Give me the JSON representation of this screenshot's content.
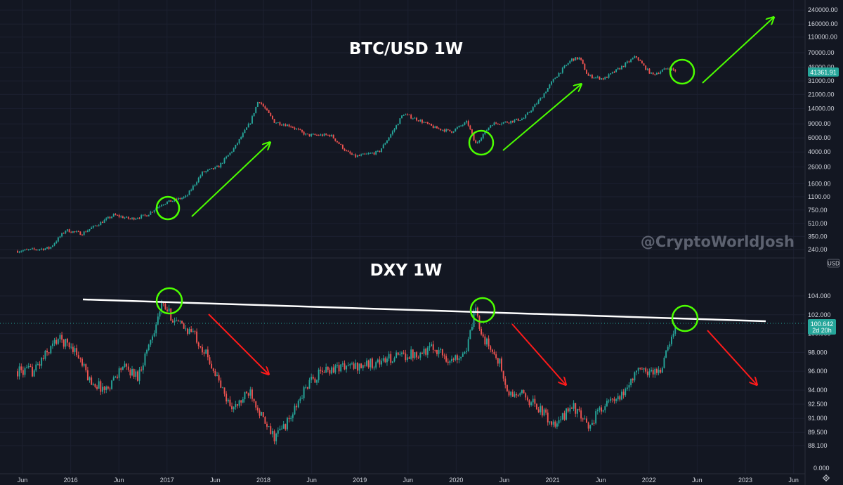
{
  "chart_data": [
    {
      "type": "candlestick",
      "title": "BTC/USD 1W",
      "currency": "USD",
      "scale": "log",
      "ylim": [
        220,
        240000
      ],
      "y_ticks": [
        "240000.00",
        "160000.00",
        "110000.00",
        "70000.00",
        "46000.00",
        "31000.00",
        "21000.00",
        "14000.00",
        "9000.00",
        "6000.00",
        "4000.00",
        "2600.00",
        "1600.00",
        "1100.00",
        "750.00",
        "510.00",
        "350.00",
        "240.00"
      ],
      "last_price": "41361.91",
      "series": [
        {
          "date": "2015-06",
          "close": 230
        },
        {
          "date": "2015-10",
          "close": 250
        },
        {
          "date": "2015-12",
          "close": 420
        },
        {
          "date": "2016-02",
          "close": 380
        },
        {
          "date": "2016-06",
          "close": 650
        },
        {
          "date": "2016-08",
          "close": 580
        },
        {
          "date": "2016-10",
          "close": 640
        },
        {
          "date": "2016-12",
          "close": 900
        },
        {
          "date": "2017-03",
          "close": 1100
        },
        {
          "date": "2017-05",
          "close": 2200
        },
        {
          "date": "2017-07",
          "close": 2600
        },
        {
          "date": "2017-09",
          "close": 4500
        },
        {
          "date": "2017-11",
          "close": 9500
        },
        {
          "date": "2017-12",
          "close": 18000
        },
        {
          "date": "2018-02",
          "close": 9500
        },
        {
          "date": "2018-04",
          "close": 8500
        },
        {
          "date": "2018-06",
          "close": 6500
        },
        {
          "date": "2018-09",
          "close": 6500
        },
        {
          "date": "2018-11",
          "close": 4000
        },
        {
          "date": "2018-12",
          "close": 3500
        },
        {
          "date": "2019-03",
          "close": 4000
        },
        {
          "date": "2019-05",
          "close": 8000
        },
        {
          "date": "2019-06",
          "close": 12000
        },
        {
          "date": "2019-08",
          "close": 10000
        },
        {
          "date": "2019-10",
          "close": 8000
        },
        {
          "date": "2019-12",
          "close": 7200
        },
        {
          "date": "2020-02",
          "close": 9500
        },
        {
          "date": "2020-03",
          "close": 5000
        },
        {
          "date": "2020-05",
          "close": 9000
        },
        {
          "date": "2020-07",
          "close": 9500
        },
        {
          "date": "2020-09",
          "close": 10500
        },
        {
          "date": "2020-11",
          "close": 18000
        },
        {
          "date": "2021-01",
          "close": 35000
        },
        {
          "date": "2021-03",
          "close": 58000
        },
        {
          "date": "2021-04",
          "close": 60000
        },
        {
          "date": "2021-05",
          "close": 36000
        },
        {
          "date": "2021-07",
          "close": 33000
        },
        {
          "date": "2021-09",
          "close": 45000
        },
        {
          "date": "2021-11",
          "close": 63000
        },
        {
          "date": "2021-12",
          "close": 47000
        },
        {
          "date": "2022-01",
          "close": 37000
        },
        {
          "date": "2022-03",
          "close": 45000
        },
        {
          "date": "2022-04",
          "close": 41361.91
        }
      ]
    },
    {
      "type": "candlestick",
      "title": "DXY 1W",
      "scale": "linear",
      "ylim": [
        87,
        106
      ],
      "y_ticks": [
        "104.000",
        "102.000",
        "100.000",
        "98.000",
        "96.000",
        "94.000",
        "92.500",
        "91.000",
        "89.500",
        "88.100"
      ],
      "bottom_tick": "0.000",
      "last_price": "100.642",
      "countdown": "2d 20h",
      "series": [
        {
          "date": "2015-06",
          "close": 96
        },
        {
          "date": "2015-08",
          "close": 96
        },
        {
          "date": "2015-11",
          "close": 99.5
        },
        {
          "date": "2016-01",
          "close": 98.5
        },
        {
          "date": "2016-03",
          "close": 95
        },
        {
          "date": "2016-05",
          "close": 94
        },
        {
          "date": "2016-07",
          "close": 96.5
        },
        {
          "date": "2016-09",
          "close": 95.5
        },
        {
          "date": "2016-11",
          "close": 100.5
        },
        {
          "date": "2016-12",
          "close": 103
        },
        {
          "date": "2017-02",
          "close": 101
        },
        {
          "date": "2017-04",
          "close": 100
        },
        {
          "date": "2017-06",
          "close": 97
        },
        {
          "date": "2017-08",
          "close": 93
        },
        {
          "date": "2017-09",
          "close": 92
        },
        {
          "date": "2017-11",
          "close": 94
        },
        {
          "date": "2018-01",
          "close": 90
        },
        {
          "date": "2018-02",
          "close": 89
        },
        {
          "date": "2018-04",
          "close": 91
        },
        {
          "date": "2018-06",
          "close": 94.5
        },
        {
          "date": "2018-08",
          "close": 96
        },
        {
          "date": "2018-10",
          "close": 96.5
        },
        {
          "date": "2018-12",
          "close": 96.5
        },
        {
          "date": "2019-03",
          "close": 97
        },
        {
          "date": "2019-05",
          "close": 97.5
        },
        {
          "date": "2019-08",
          "close": 98
        },
        {
          "date": "2019-10",
          "close": 98.5
        },
        {
          "date": "2019-12",
          "close": 97
        },
        {
          "date": "2020-02",
          "close": 98.5
        },
        {
          "date": "2020-03",
          "close": 102.5
        },
        {
          "date": "2020-04",
          "close": 99.5
        },
        {
          "date": "2020-06",
          "close": 97
        },
        {
          "date": "2020-07",
          "close": 93.5
        },
        {
          "date": "2020-09",
          "close": 93.5
        },
        {
          "date": "2020-11",
          "close": 92
        },
        {
          "date": "2021-01",
          "close": 90
        },
        {
          "date": "2021-03",
          "close": 92.5
        },
        {
          "date": "2021-05",
          "close": 90
        },
        {
          "date": "2021-07",
          "close": 92.5
        },
        {
          "date": "2021-09",
          "close": 93
        },
        {
          "date": "2021-11",
          "close": 96
        },
        {
          "date": "2021-12",
          "close": 96
        },
        {
          "date": "2022-02",
          "close": 96
        },
        {
          "date": "2022-03",
          "close": 98.5
        },
        {
          "date": "2022-04",
          "close": 100.642
        }
      ]
    }
  ],
  "x_axis": {
    "labels": [
      "Jun",
      "2016",
      "Jun",
      "2017",
      "Jun",
      "2018",
      "Jun",
      "2019",
      "Jun",
      "2020",
      "Jun",
      "2021",
      "Jun",
      "2022",
      "Jun",
      "2023",
      "Jun"
    ]
  },
  "watermark": "@CryptoWorldJosh",
  "currency_button": "USD",
  "colors": {
    "background": "#131722",
    "up": "#26a69a",
    "down": "#ef5350",
    "annotation_green": "#4cff00",
    "annotation_red": "#ff1a1a",
    "trendline": "#ffffff",
    "price_tag_btc": "#26a69a",
    "price_tag_dxy": "#26a69a"
  },
  "icons": {
    "settings": "gear-icon"
  }
}
